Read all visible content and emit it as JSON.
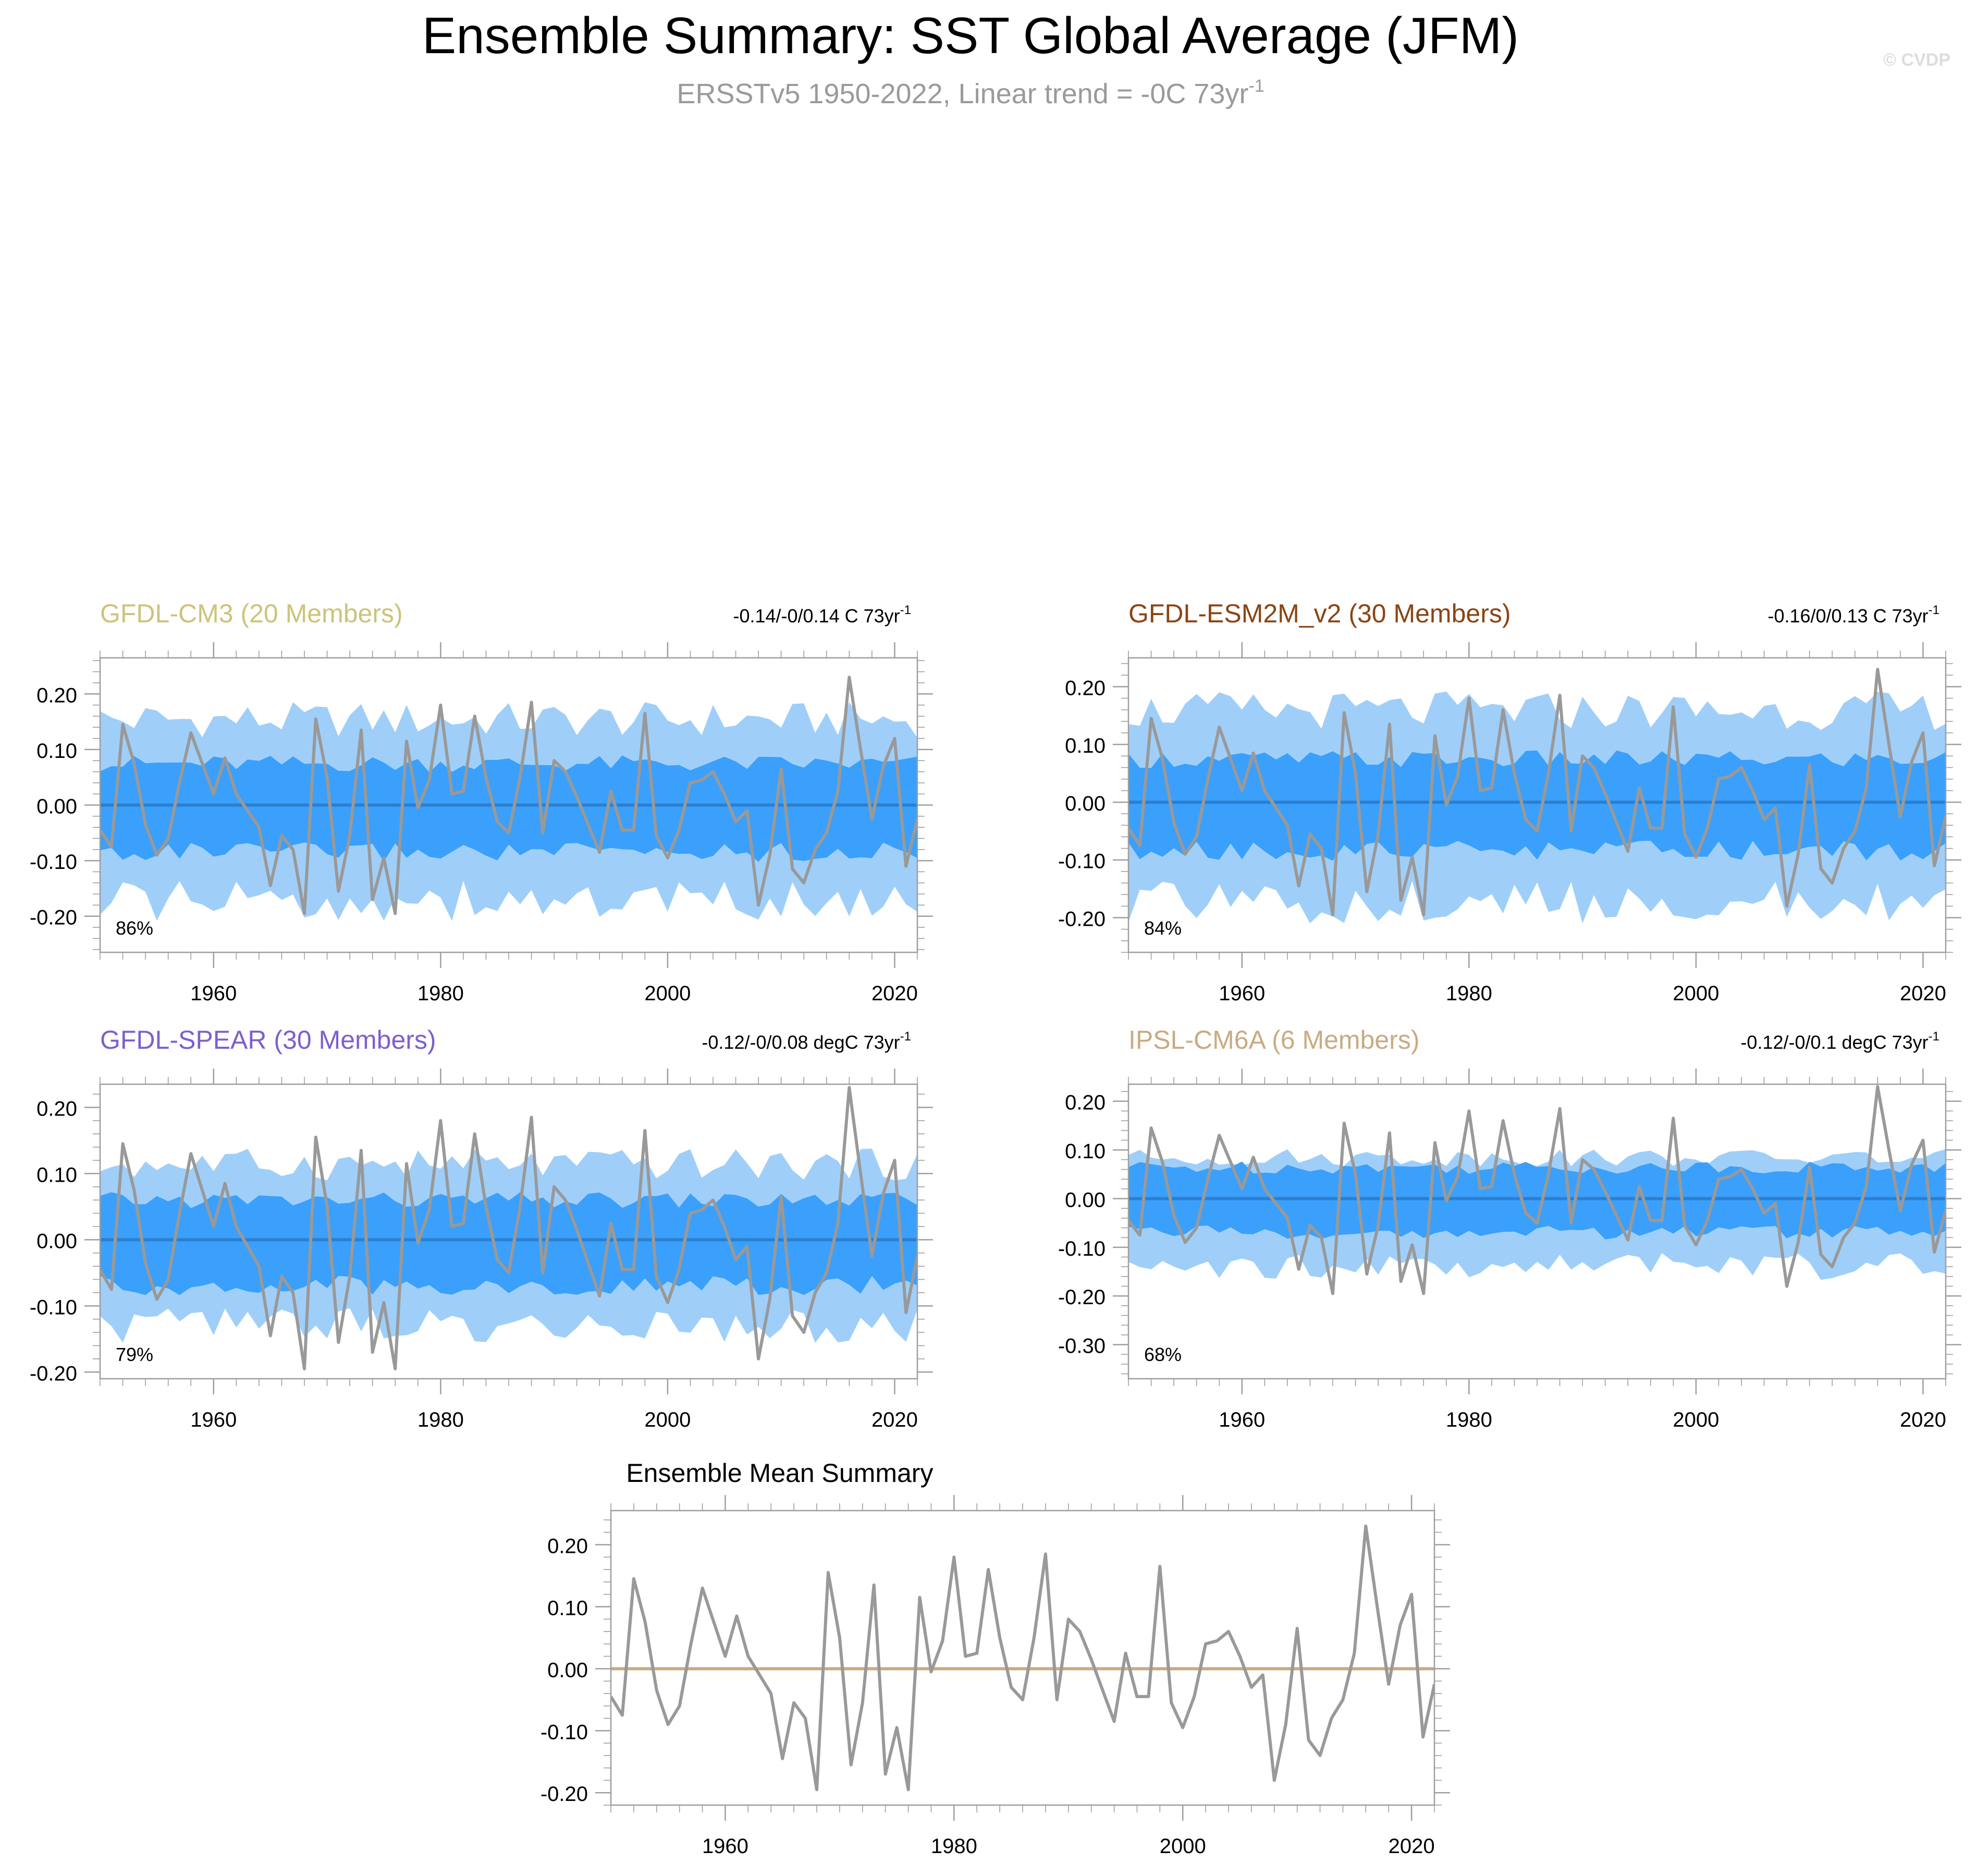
{
  "figure": {
    "title": "Ensemble Summary: SST Global Average (JFM)",
    "subtitle_main": "ERSSTv5 1950-2022, Linear trend = -0C 73yr",
    "subtitle_sup": "-1",
    "watermark": "© CVDP"
  },
  "colors": {
    "outer_band": "#9fcff9",
    "inner_band": "#3aa0fb",
    "ens_mean_line": "#2b7fcf",
    "obs_line": "#999999",
    "summary_mean_line": "#c8aa82",
    "frame": "#9e9e9e"
  },
  "chart_data": [
    {
      "type": "area",
      "panel": "cm3",
      "title": "GFDL-CM3 (20 Members)",
      "title_color": "#cdc37a",
      "trend_main": "-0.14/-0/0.14 C 73yr",
      "trend_sup": "-1",
      "percent": "86%",
      "xlim": [
        1950,
        2022
      ],
      "ylim": [
        -0.265,
        0.265
      ],
      "yticks": [
        -0.2,
        -0.1,
        0.0,
        0.1,
        0.2
      ],
      "ytick_labels": [
        "-0.20",
        "-0.10",
        "0.00",
        "0.10",
        "0.20"
      ],
      "xticks": [
        1960,
        1980,
        2000,
        2020
      ],
      "xtick_labels": [
        "1960",
        "1980",
        "2000",
        "2020"
      ],
      "band_amplitudes": {
        "outer_upper": 0.155,
        "inner_upper": 0.075,
        "inner_lower": -0.085,
        "outer_lower": -0.175
      },
      "series": [
        {
          "kind": "ensemble-mean",
          "values_constant": 0.0
        }
      ]
    },
    {
      "type": "area",
      "panel": "esm2m",
      "title": "GFDL-ESM2M_v2 (30 Members)",
      "title_color": "#8b4513",
      "trend_main": "-0.16/0/0.13 C 73yr",
      "trend_sup": "-1",
      "percent": "84%",
      "xlim": [
        1950,
        2022
      ],
      "ylim": [
        -0.26,
        0.25
      ],
      "yticks": [
        -0.2,
        -0.1,
        0.0,
        0.1,
        0.2
      ],
      "ytick_labels": [
        "-0.20",
        "-0.10",
        "0.00",
        "0.10",
        "0.20"
      ],
      "xticks": [
        1960,
        1980,
        2000,
        2020
      ],
      "xtick_labels": [
        "1960",
        "1980",
        "2000",
        "2020"
      ],
      "band_amplitudes": {
        "outer_upper": 0.16,
        "inner_upper": 0.075,
        "inner_lower": -0.085,
        "outer_lower": -0.175
      },
      "series": [
        {
          "kind": "ensemble-mean",
          "values_constant": 0.0
        }
      ]
    },
    {
      "type": "area",
      "panel": "spear",
      "title": "GFDL-SPEAR (30 Members)",
      "title_color": "#7d5fce",
      "trend_main": "-0.12/-0/0.08 degC 73yr",
      "trend_sup": "-1",
      "percent": "79%",
      "xlim": [
        1950,
        2022
      ],
      "ylim": [
        -0.21,
        0.235
      ],
      "yticks": [
        -0.2,
        -0.1,
        0.0,
        0.1,
        0.2
      ],
      "ytick_labels": [
        "-0.20",
        "-0.10",
        "0.00",
        "0.10",
        "0.20"
      ],
      "xticks": [
        1960,
        1980,
        2000,
        2020
      ],
      "xtick_labels": [
        "1960",
        "1980",
        "2000",
        "2020"
      ],
      "band_amplitudes": {
        "outer_upper": 0.115,
        "inner_upper": 0.06,
        "inner_lower": -0.07,
        "outer_lower": -0.13
      },
      "series": [
        {
          "kind": "ensemble-mean",
          "values_constant": 0.0
        }
      ]
    },
    {
      "type": "area",
      "panel": "ipsl",
      "title": "IPSL-CM6A (6 Members)",
      "title_color": "#c9ab82",
      "trend_main": "-0.12/-0/0.1 degC 73yr",
      "trend_sup": "-1",
      "percent": "68%",
      "xlim": [
        1950,
        2022
      ],
      "ylim": [
        -0.37,
        0.235
      ],
      "yticks": [
        -0.3,
        -0.2,
        -0.1,
        0.0,
        0.1,
        0.2
      ],
      "ytick_labels": [
        "-0.30",
        "-0.20",
        "-0.10",
        "0.00",
        "0.10",
        "0.20"
      ],
      "xticks": [
        1960,
        1980,
        2000,
        2020
      ],
      "xtick_labels": [
        "1960",
        "1980",
        "2000",
        "2020"
      ],
      "band_amplitudes": {
        "outer_upper": 0.085,
        "inner_upper": 0.065,
        "inner_lower": -0.07,
        "outer_lower": -0.14
      },
      "series": [
        {
          "kind": "ensemble-mean",
          "values_constant": 0.0
        }
      ]
    },
    {
      "type": "line",
      "panel": "summary",
      "title": "Ensemble Mean Summary",
      "xlim": [
        1950,
        2022
      ],
      "ylim": [
        -0.22,
        0.255
      ],
      "yticks": [
        -0.2,
        -0.1,
        0.0,
        0.1,
        0.2
      ],
      "ytick_labels": [
        "-0.20",
        "-0.10",
        "0.00",
        "0.10",
        "0.20"
      ],
      "xticks": [
        1960,
        1980,
        2000,
        2020
      ],
      "xtick_labels": [
        "1960",
        "1980",
        "2000",
        "2020"
      ],
      "series": [
        {
          "kind": "ensemble-mean",
          "values_constant": 0.0
        }
      ]
    }
  ],
  "observations": {
    "name": "ERSSTv5",
    "years": [
      1950,
      1951,
      1952,
      1953,
      1954,
      1955,
      1956,
      1957,
      1958,
      1959,
      1960,
      1961,
      1962,
      1963,
      1964,
      1965,
      1966,
      1967,
      1968,
      1969,
      1970,
      1971,
      1972,
      1973,
      1974,
      1975,
      1976,
      1977,
      1978,
      1979,
      1980,
      1981,
      1982,
      1983,
      1984,
      1985,
      1986,
      1987,
      1988,
      1989,
      1990,
      1991,
      1992,
      1993,
      1994,
      1995,
      1996,
      1997,
      1998,
      1999,
      2000,
      2001,
      2002,
      2003,
      2004,
      2005,
      2006,
      2007,
      2008,
      2009,
      2010,
      2011,
      2012,
      2013,
      2014,
      2015,
      2016,
      2017,
      2018,
      2019,
      2020,
      2021,
      2022
    ],
    "values": [
      -0.045,
      -0.075,
      0.145,
      0.075,
      -0.035,
      -0.09,
      -0.06,
      0.04,
      0.13,
      0.075,
      0.02,
      0.085,
      0.02,
      -0.01,
      -0.04,
      -0.145,
      -0.055,
      -0.08,
      -0.195,
      0.155,
      0.05,
      -0.155,
      -0.055,
      0.135,
      -0.17,
      -0.095,
      -0.195,
      0.115,
      -0.005,
      0.045,
      0.18,
      0.02,
      0.025,
      0.16,
      0.05,
      -0.03,
      -0.05,
      0.05,
      0.185,
      -0.05,
      0.08,
      0.06,
      0.015,
      -0.035,
      -0.085,
      0.025,
      -0.045,
      -0.045,
      0.165,
      -0.055,
      -0.095,
      -0.045,
      0.04,
      0.045,
      0.06,
      0.02,
      -0.03,
      -0.01,
      -0.18,
      -0.09,
      0.065,
      -0.115,
      -0.14,
      -0.08,
      -0.05,
      0.025,
      0.23,
      0.1,
      -0.025,
      0.07,
      0.12,
      -0.11,
      -0.025
    ]
  }
}
